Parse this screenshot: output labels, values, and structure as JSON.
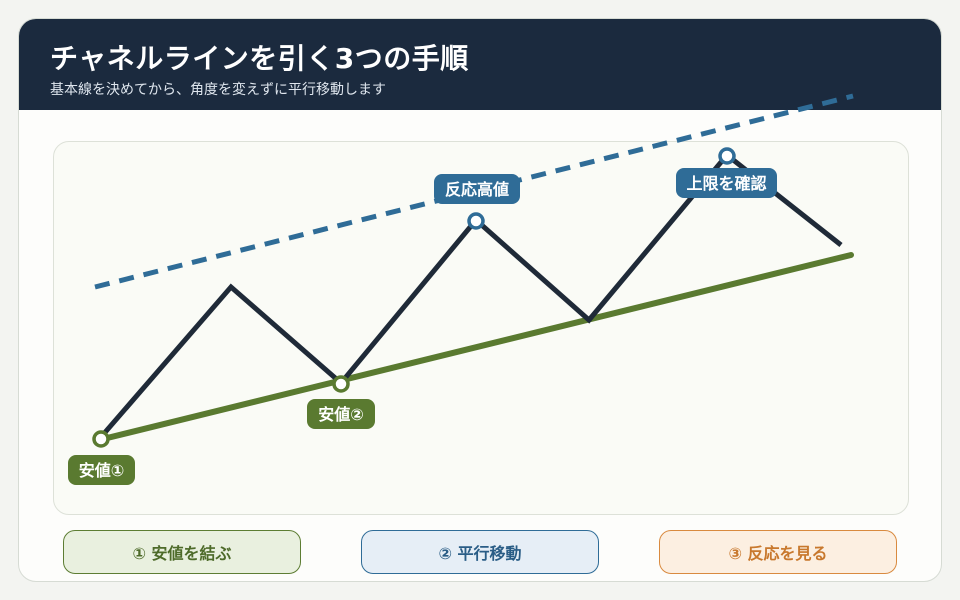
{
  "header": {
    "title": "チャネルラインを引く3つの手順",
    "subtitle": "基本線を決めてから、角度を変えずに平行移動します"
  },
  "diagram": {
    "labels": {
      "low1": "安値①",
      "low2": "安値②",
      "reaction_high": "反応高値",
      "confirm_upper": "上限を確認"
    },
    "colors": {
      "price_line": "#1f2a38",
      "support_line": "#5a7a30",
      "channel_line": "#2f6c97",
      "label_green": "#5a7a30",
      "label_blue": "#2f6c97"
    }
  },
  "steps": [
    {
      "label": "① 安値を結ぶ",
      "color": "#5d7d33"
    },
    {
      "label": "② 平行移動",
      "color": "#2f6c97"
    },
    {
      "label": "③ 反応を見る",
      "color": "#d98a3f"
    }
  ]
}
